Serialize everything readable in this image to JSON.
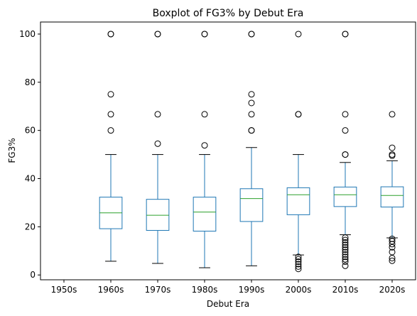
{
  "chart_data": {
    "type": "boxplot",
    "title": "Boxplot of FG3% by Debut Era",
    "xlabel": "Debut Era",
    "ylabel": "FG3%",
    "ylim": [
      -2,
      105
    ],
    "yticks": [
      0,
      20,
      40,
      60,
      80,
      100
    ],
    "grid": false,
    "colors": {
      "box": "#1f77b4",
      "median": "#2ca02c",
      "whisker": "#000000",
      "outlier": "#000000"
    },
    "categories": [
      "1950s",
      "1960s",
      "1970s",
      "1980s",
      "1990s",
      "2000s",
      "2010s",
      "2020s"
    ],
    "boxes": [
      {
        "era": "1950s",
        "empty": true
      },
      {
        "era": "1960s",
        "whislo": 5.7,
        "q1": 19.2,
        "med": 25.8,
        "q3": 32.3,
        "whishi": 50.0,
        "fliers": [
          60,
          66.7,
          75,
          100,
          100
        ]
      },
      {
        "era": "1970s",
        "whislo": 4.8,
        "q1": 18.5,
        "med": 24.8,
        "q3": 31.4,
        "whishi": 50.0,
        "fliers": [
          54.5,
          66.7,
          100,
          100
        ]
      },
      {
        "era": "1980s",
        "whislo": 3.0,
        "q1": 18.2,
        "med": 26.1,
        "q3": 32.3,
        "whishi": 50.0,
        "fliers": [
          53.8,
          66.7,
          100,
          100
        ]
      },
      {
        "era": "1990s",
        "whislo": 3.8,
        "q1": 22.2,
        "med": 31.7,
        "q3": 35.8,
        "whishi": 52.9,
        "fliers": [
          60,
          60,
          66.7,
          71.4,
          75,
          100,
          100
        ]
      },
      {
        "era": "2000s",
        "whislo": 8.3,
        "q1": 25.0,
        "med": 33.3,
        "q3": 36.2,
        "whishi": 50.0,
        "fliers": [
          2.5,
          3.5,
          4.5,
          5.5,
          6.5,
          7.5,
          66.7,
          66.7,
          100
        ]
      },
      {
        "era": "2010s",
        "whislo": 16.7,
        "q1": 28.4,
        "med": 33.3,
        "q3": 36.5,
        "whishi": 46.7,
        "fliers": [
          3.8,
          5.5,
          6.5,
          7.5,
          8.5,
          9.5,
          10.5,
          11.5,
          12.5,
          13.5,
          14.5,
          15.5,
          50,
          50,
          60,
          66.7,
          100,
          100
        ]
      },
      {
        "era": "2020s",
        "whislo": 15.4,
        "q1": 28.2,
        "med": 33.0,
        "q3": 36.6,
        "whishi": 47.4,
        "fliers": [
          5.9,
          7.0,
          9.5,
          11.5,
          12.8,
          14.0,
          15.0,
          49.5,
          50,
          52.8,
          66.7
        ]
      }
    ]
  }
}
